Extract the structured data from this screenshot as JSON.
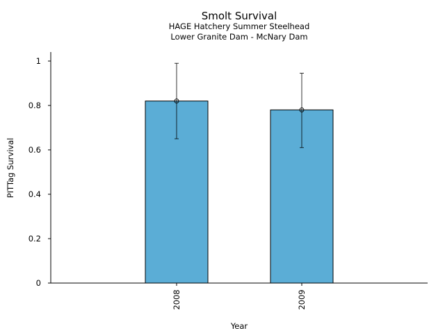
{
  "chart_data": {
    "type": "bar",
    "title": "Smolt Survival",
    "subtitle_lines": [
      "HAGE Hatchery Summer Steelhead",
      "Lower Granite Dam - McNary Dam"
    ],
    "xlabel": "Year",
    "ylabel": "PITTag Survival",
    "categories": [
      "2008",
      "2009"
    ],
    "values": [
      0.82,
      0.78
    ],
    "error_low": [
      0.65,
      0.61
    ],
    "error_high": [
      0.99,
      0.945
    ],
    "ylim": [
      0,
      1.04
    ],
    "yticks": [
      0,
      0.2,
      0.4,
      0.6,
      0.8,
      1
    ],
    "ytick_labels": [
      "0",
      "0.2",
      "0.4",
      "0.6",
      "0.8",
      "1"
    ],
    "grid": false,
    "bar_color": "#5badd6"
  }
}
